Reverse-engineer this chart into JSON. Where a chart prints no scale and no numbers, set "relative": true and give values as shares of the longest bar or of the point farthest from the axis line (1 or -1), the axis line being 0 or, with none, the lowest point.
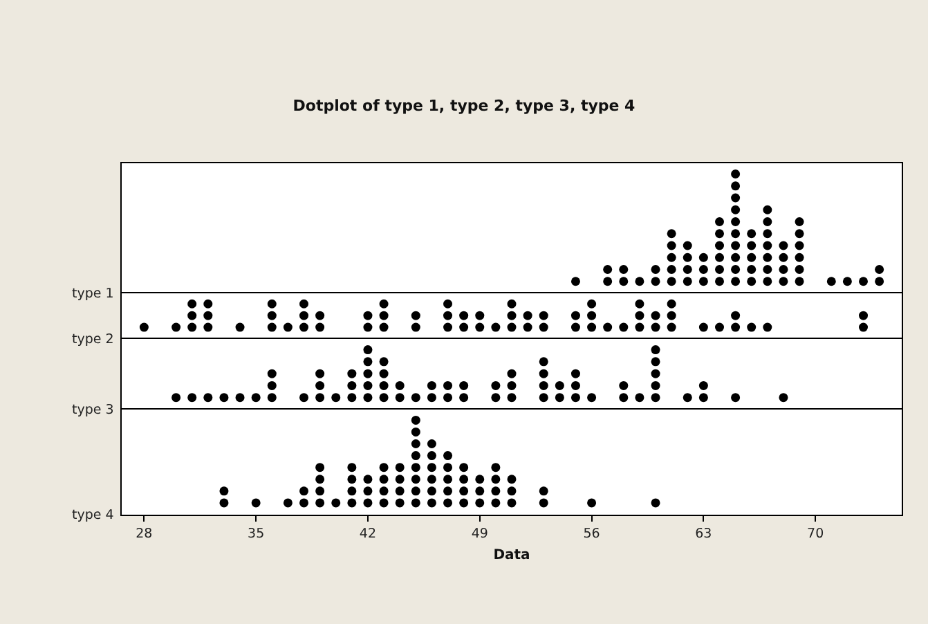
{
  "chart_data": [
    {
      "type": "scatter",
      "title": "Dotplot of type 1, type 2, type 3, type 4",
      "relative": true,
      "marker": "circle",
      "tick_labels": false,
      "xlim": [
        26.6,
        75.4
      ],
      "xticks": [
        28,
        35,
        42,
        49,
        56,
        63,
        70
      ],
      "series": [
        {
          "name": "type 1",
          "color": "#000000",
          "x": [
            55,
            57,
            58,
            59,
            60,
            61,
            62,
            63,
            64,
            65,
            66,
            67,
            68,
            69,
            71,
            72,
            73,
            74,
            57,
            58,
            60,
            61,
            62,
            63,
            64,
            65,
            66,
            67,
            68,
            69,
            74,
            61,
            62,
            63,
            64,
            65,
            66,
            67,
            68,
            69,
            61,
            62,
            64,
            65,
            66,
            67,
            68,
            69,
            61,
            64,
            65,
            66,
            67,
            69,
            64,
            65,
            67,
            69,
            65,
            67,
            65,
            65,
            65
          ],
          "values": [
            0.1,
            0.1,
            0.1,
            0.1,
            0.1,
            0.1,
            0.1,
            0.1,
            0.1,
            0.1,
            0.1,
            0.1,
            0.1,
            0.1,
            0.1,
            0.1,
            0.1,
            0.1,
            0.2,
            0.2,
            0.2,
            0.2,
            0.2,
            0.2,
            0.2,
            0.2,
            0.2,
            0.2,
            0.2,
            0.2,
            0.2,
            0.3,
            0.3,
            0.3,
            0.3,
            0.3,
            0.3,
            0.3,
            0.3,
            0.3,
            0.4,
            0.4,
            0.4,
            0.4,
            0.4,
            0.4,
            0.4,
            0.4,
            0.5,
            0.5,
            0.5,
            0.5,
            0.5,
            0.5,
            0.6,
            0.6,
            0.6,
            0.6,
            0.7,
            0.7,
            0.8,
            0.9,
            1
          ]
        }
      ]
    },
    {
      "type": "scatter",
      "relative": true,
      "marker": "circle",
      "tick_labels": false,
      "xlim": [
        26.6,
        75.4
      ],
      "xticks": [
        28,
        35,
        42,
        49,
        56,
        63,
        70
      ],
      "series": [
        {
          "name": "type 2",
          "color": "#000000",
          "x": [
            28,
            30,
            31,
            32,
            34,
            36,
            37,
            38,
            39,
            42,
            43,
            45,
            47,
            48,
            49,
            50,
            51,
            52,
            53,
            55,
            56,
            57,
            58,
            59,
            60,
            61,
            63,
            64,
            65,
            66,
            67,
            73,
            31,
            32,
            36,
            38,
            39,
            42,
            43,
            45,
            47,
            48,
            49,
            51,
            52,
            53,
            55,
            56,
            59,
            60,
            61,
            65,
            73,
            31,
            32,
            36,
            38,
            43,
            47,
            51,
            56,
            59,
            61
          ],
          "values": [
            0.333,
            0.333,
            0.333,
            0.333,
            0.333,
            0.333,
            0.333,
            0.333,
            0.333,
            0.333,
            0.333,
            0.333,
            0.333,
            0.333,
            0.333,
            0.333,
            0.333,
            0.333,
            0.333,
            0.333,
            0.333,
            0.333,
            0.333,
            0.333,
            0.333,
            0.333,
            0.333,
            0.333,
            0.333,
            0.333,
            0.333,
            0.333,
            0.667,
            0.667,
            0.667,
            0.667,
            0.667,
            0.667,
            0.667,
            0.667,
            0.667,
            0.667,
            0.667,
            0.667,
            0.667,
            0.667,
            0.667,
            0.667,
            0.667,
            0.667,
            0.667,
            0.667,
            0.667,
            1,
            1,
            1,
            1,
            1,
            1,
            1,
            1,
            1,
            1
          ]
        }
      ]
    },
    {
      "type": "scatter",
      "relative": true,
      "marker": "circle",
      "tick_labels": false,
      "xlim": [
        26.6,
        75.4
      ],
      "xticks": [
        28,
        35,
        42,
        49,
        56,
        63,
        70
      ],
      "series": [
        {
          "name": "type 3",
          "color": "#000000",
          "x": [
            30,
            31,
            32,
            33,
            34,
            35,
            36,
            38,
            39,
            40,
            41,
            42,
            43,
            44,
            45,
            46,
            47,
            48,
            50,
            51,
            53,
            54,
            55,
            56,
            58,
            59,
            60,
            62,
            63,
            65,
            68,
            36,
            39,
            41,
            42,
            43,
            44,
            46,
            47,
            48,
            50,
            51,
            53,
            54,
            55,
            58,
            60,
            63,
            36,
            39,
            41,
            42,
            43,
            51,
            53,
            55,
            60,
            42,
            43,
            53,
            60,
            42,
            60
          ],
          "values": [
            0.2,
            0.2,
            0.2,
            0.2,
            0.2,
            0.2,
            0.2,
            0.2,
            0.2,
            0.2,
            0.2,
            0.2,
            0.2,
            0.2,
            0.2,
            0.2,
            0.2,
            0.2,
            0.2,
            0.2,
            0.2,
            0.2,
            0.2,
            0.2,
            0.2,
            0.2,
            0.2,
            0.2,
            0.2,
            0.2,
            0.2,
            0.4,
            0.4,
            0.4,
            0.4,
            0.4,
            0.4,
            0.4,
            0.4,
            0.4,
            0.4,
            0.4,
            0.4,
            0.4,
            0.4,
            0.4,
            0.4,
            0.4,
            0.6,
            0.6,
            0.6,
            0.6,
            0.6,
            0.6,
            0.6,
            0.6,
            0.6,
            0.8,
            0.8,
            0.8,
            0.8,
            1,
            1
          ]
        }
      ]
    },
    {
      "type": "scatter",
      "xlabel": "Data",
      "relative": true,
      "marker": "circle",
      "tick_labels": "x",
      "xlim": [
        26.6,
        75.4
      ],
      "xticks": [
        28,
        35,
        42,
        49,
        56,
        63,
        70
      ],
      "series": [
        {
          "name": "type 4",
          "color": "#000000",
          "x": [
            33,
            35,
            37,
            38,
            39,
            40,
            41,
            42,
            43,
            44,
            45,
            46,
            47,
            48,
            49,
            50,
            51,
            53,
            56,
            60,
            33,
            38,
            39,
            41,
            42,
            43,
            44,
            45,
            46,
            47,
            48,
            49,
            50,
            51,
            53,
            39,
            41,
            42,
            43,
            44,
            45,
            46,
            47,
            48,
            49,
            50,
            51,
            39,
            41,
            43,
            44,
            45,
            46,
            47,
            48,
            50,
            45,
            46,
            47,
            45,
            46,
            45,
            45
          ],
          "values": [
            0.125,
            0.125,
            0.125,
            0.125,
            0.125,
            0.125,
            0.125,
            0.125,
            0.125,
            0.125,
            0.125,
            0.125,
            0.125,
            0.125,
            0.125,
            0.125,
            0.125,
            0.125,
            0.125,
            0.125,
            0.25,
            0.25,
            0.25,
            0.25,
            0.25,
            0.25,
            0.25,
            0.25,
            0.25,
            0.25,
            0.25,
            0.25,
            0.25,
            0.25,
            0.25,
            0.375,
            0.375,
            0.375,
            0.375,
            0.375,
            0.375,
            0.375,
            0.375,
            0.375,
            0.375,
            0.375,
            0.375,
            0.5,
            0.5,
            0.5,
            0.5,
            0.5,
            0.5,
            0.5,
            0.5,
            0.5,
            0.625,
            0.625,
            0.625,
            0.75,
            0.75,
            0.875,
            1
          ]
        }
      ]
    }
  ]
}
